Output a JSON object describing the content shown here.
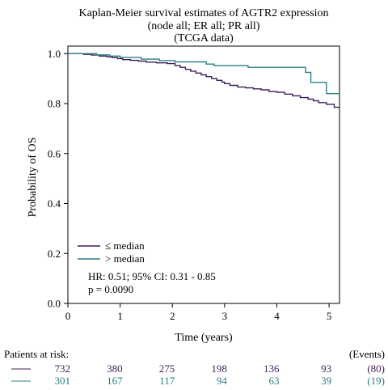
{
  "chart_data": {
    "type": "line",
    "title_lines": [
      "Kaplan-Meier survival estimates of AGTR2 expression",
      "(node all; ER all; PR all)",
      "(TCGA data)"
    ],
    "xlabel": "Time (years)",
    "ylabel": "Probability of OS",
    "xlim": [
      0,
      5.2
    ],
    "ylim": [
      0,
      1.03
    ],
    "x_ticks": [
      "0",
      "1",
      "2",
      "3",
      "4",
      "5"
    ],
    "y_ticks": [
      "0.0",
      "0.2",
      "0.4",
      "0.6",
      "0.8",
      "1.0"
    ],
    "legend_position": "bottom-left",
    "annotations": [
      "HR: 0.51; 95% CI: 0.31 - 0.85",
      "p = 0.0090"
    ],
    "series": [
      {
        "name": "≤ median",
        "color": "#3d1f5c",
        "x": [
          0,
          0.3,
          0.45,
          0.6,
          0.75,
          0.85,
          0.95,
          1.05,
          1.2,
          1.35,
          1.5,
          1.7,
          1.9,
          2.05,
          2.15,
          2.25,
          2.35,
          2.45,
          2.55,
          2.65,
          2.75,
          2.85,
          2.95,
          3.0,
          3.1,
          3.25,
          3.4,
          3.55,
          3.7,
          3.85,
          4.0,
          4.15,
          4.3,
          4.45,
          4.6,
          4.7,
          4.8,
          4.95,
          5.1,
          5.2
        ],
        "y": [
          1.0,
          0.997,
          0.994,
          0.99,
          0.987,
          0.984,
          0.98,
          0.976,
          0.973,
          0.97,
          0.966,
          0.963,
          0.96,
          0.952,
          0.945,
          0.937,
          0.93,
          0.922,
          0.915,
          0.908,
          0.9,
          0.893,
          0.886,
          0.88,
          0.873,
          0.866,
          0.863,
          0.859,
          0.855,
          0.848,
          0.845,
          0.838,
          0.831,
          0.824,
          0.818,
          0.811,
          0.804,
          0.797,
          0.785,
          0.785
        ]
      },
      {
        "name": "> median",
        "color": "#2a8085",
        "x": [
          0,
          0.55,
          0.8,
          1.0,
          1.4,
          1.75,
          2.05,
          2.65,
          2.8,
          3.45,
          4.55,
          4.65,
          4.95,
          5.2
        ],
        "y": [
          1.0,
          0.995,
          0.99,
          0.985,
          0.978,
          0.972,
          0.967,
          0.958,
          0.952,
          0.945,
          0.925,
          0.885,
          0.84,
          0.84
        ]
      }
    ],
    "risk_table": {
      "label": "Patients at risk:",
      "events_header": "(Events)",
      "rows": [
        {
          "counts": [
            "732",
            "380",
            "275",
            "198",
            "136",
            "93"
          ],
          "events": "(80)",
          "color": "#3d1f5c"
        },
        {
          "counts": [
            "301",
            "167",
            "117",
            "94",
            "63",
            "39"
          ],
          "events": "(19)",
          "color": "#2a8085"
        }
      ]
    }
  }
}
